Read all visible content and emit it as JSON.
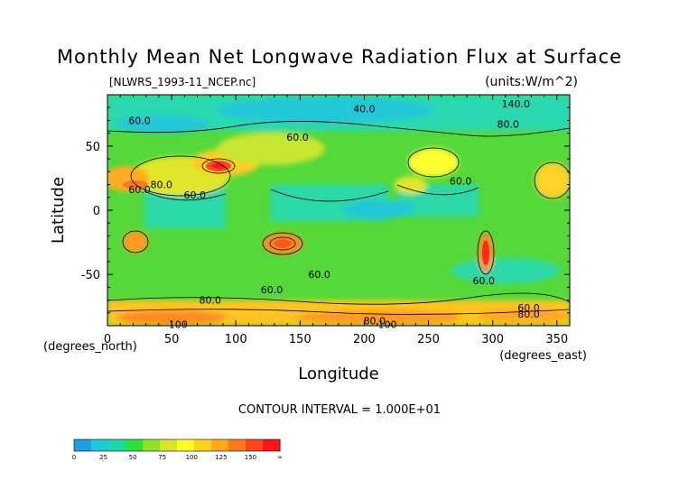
{
  "chart_data": {
    "type": "heatmap",
    "title": "Monthly Mean Net Longwave Radiation Flux at Surface",
    "source_label": "[NLWRS_1993-11_NCEP.nc]",
    "units_label": "(units:W/m^2)",
    "xlabel": "Longitude",
    "ylabel": "Latitude",
    "x_units": "(degrees_east)",
    "y_units": "(degrees_north)",
    "xlim": [
      0,
      360
    ],
    "ylim": [
      -90,
      90
    ],
    "x_ticks": [
      0,
      50,
      100,
      150,
      200,
      250,
      300,
      350
    ],
    "y_ticks": [
      -50,
      0,
      50
    ],
    "contour_interval": "CONTOUR INTERVAL = 1.000E+01",
    "contour_labels": [
      {
        "text": "40.0",
        "x": 200,
        "y": 79
      },
      {
        "text": "140.0",
        "x": 318,
        "y": 83
      },
      {
        "text": "60.0",
        "x": 25,
        "y": 70
      },
      {
        "text": "60.0",
        "x": 148,
        "y": 57
      },
      {
        "text": "80.0",
        "x": 312,
        "y": 67
      },
      {
        "text": "60.0",
        "x": 25,
        "y": 16
      },
      {
        "text": "60.0",
        "x": 68,
        "y": 12
      },
      {
        "text": "80.0",
        "x": 42,
        "y": 20
      },
      {
        "text": "60.0",
        "x": 275,
        "y": 23
      },
      {
        "text": "60.0",
        "x": 128,
        "y": -62
      },
      {
        "text": "60.0",
        "x": 165,
        "y": -50
      },
      {
        "text": "60.0",
        "x": 293,
        "y": -55
      },
      {
        "text": "80.0",
        "x": 80,
        "y": -70
      },
      {
        "text": "80.0",
        "x": 208,
        "y": -86
      },
      {
        "text": "100",
        "x": 218,
        "y": -89
      },
      {
        "text": "100",
        "x": 55,
        "y": -89
      },
      {
        "text": "60.0",
        "x": 328,
        "y": -76
      },
      {
        "text": "80.0",
        "x": 328,
        "y": -81
      }
    ],
    "colorbar": {
      "ticks": [
        "0",
        "25",
        "50",
        "75",
        "100",
        "125",
        "150",
        "∞"
      ],
      "colors": [
        "#1f9ee0",
        "#1fc8d8",
        "#1fd8a8",
        "#2ee03c",
        "#8ee028",
        "#d8e62a",
        "#ffff28",
        "#ffd21e",
        "#ffaa1e",
        "#ff781e",
        "#ff461e",
        "#ff141e"
      ]
    }
  }
}
